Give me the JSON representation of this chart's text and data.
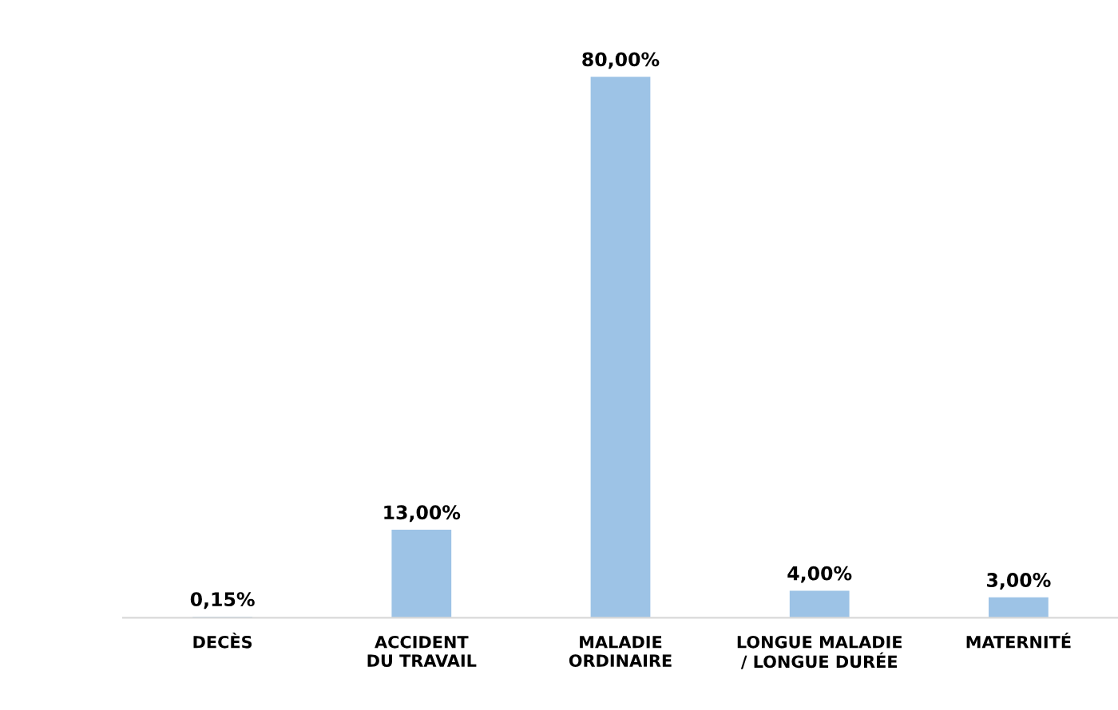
{
  "chart_data": {
    "type": "bar",
    "categories": [
      "DECÈS",
      "ACCIDENT DU TRAVAIL",
      "MALADIE ORDINAIRE",
      "LONGUE MALADIE / LONGUE DURÉE",
      "MATERNITÉ"
    ],
    "values": [
      0.15,
      13,
      80,
      4,
      3
    ],
    "value_labels": [
      "0,15%",
      "13,00%",
      "80,00%",
      "4,00%",
      "3,00%"
    ],
    "color": "#9dc3e6"
  }
}
